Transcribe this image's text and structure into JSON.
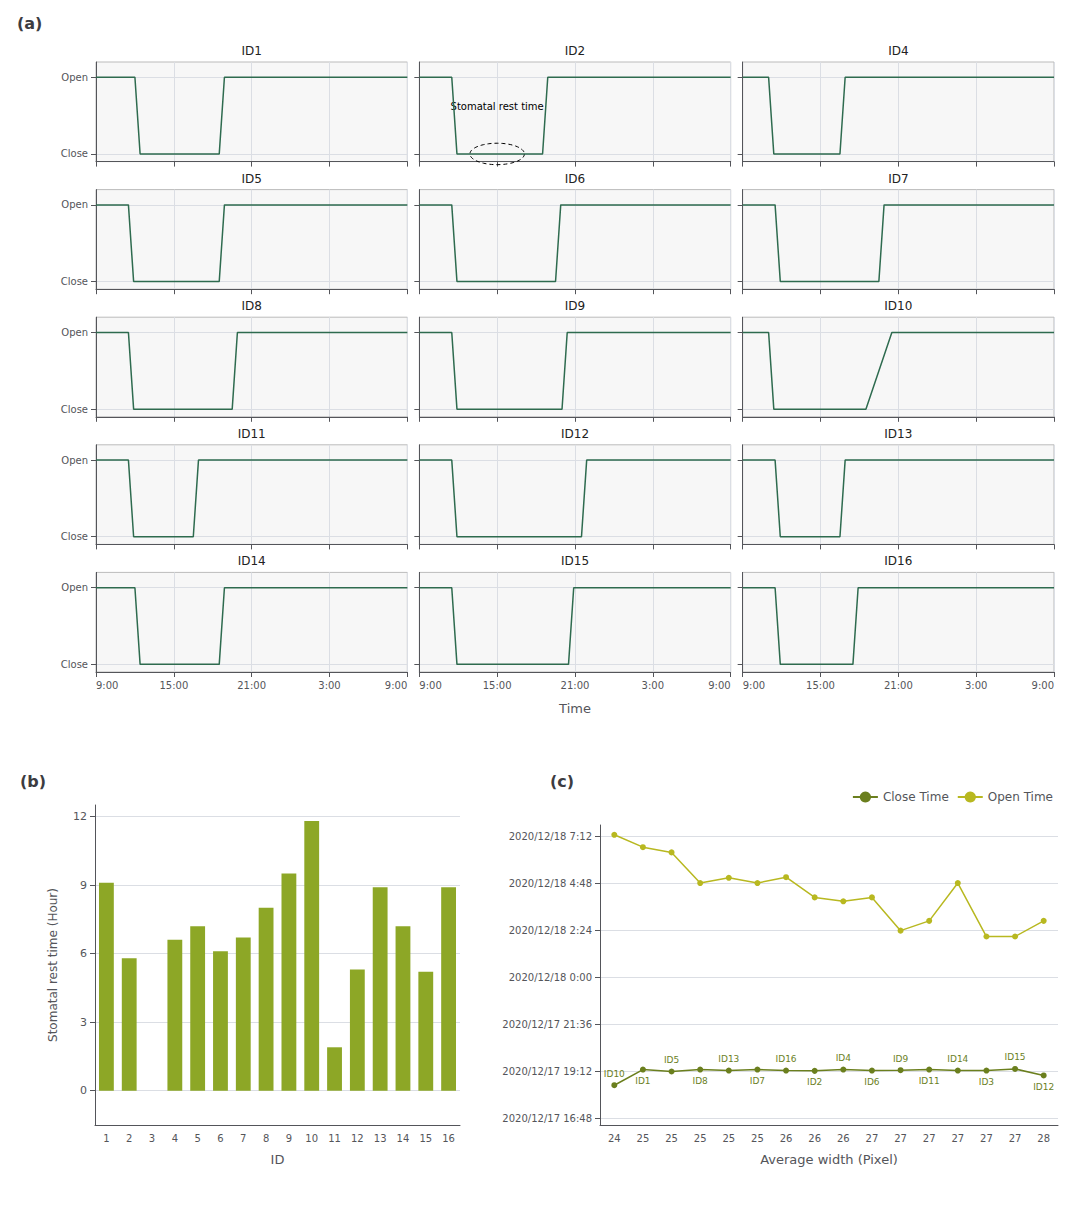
{
  "chart_data": [
    {
      "type": "line",
      "title": "(a)",
      "xlabel": "Time",
      "color": "#2e6b4f",
      "xlim": [
        0,
        24
      ],
      "ylim": [
        -0.1,
        1.2
      ],
      "xticks": [
        {
          "value": 0,
          "label": "9:00"
        },
        {
          "value": 6,
          "label": "15:00"
        },
        {
          "value": 12,
          "label": "21:00"
        },
        {
          "value": 18,
          "label": "3:00"
        },
        {
          "value": 24,
          "label": "9:00"
        }
      ],
      "yticks": [
        {
          "value": 0,
          "label": "Close"
        },
        {
          "value": 1,
          "label": "Open"
        }
      ],
      "grid": true,
      "series": [
        {
          "name": "ID1",
          "x": [
            0,
            3.0,
            3.4,
            9.5,
            9.9,
            24
          ],
          "values": [
            1,
            1,
            0,
            0,
            1,
            1
          ]
        },
        {
          "name": "ID2",
          "x": [
            0,
            2.5,
            2.9,
            9.5,
            9.9,
            24
          ],
          "values": [
            1,
            1,
            0,
            0,
            1,
            1
          ]
        },
        {
          "name": "ID4",
          "x": [
            0,
            2.0,
            2.4,
            7.5,
            7.9,
            24
          ],
          "values": [
            1,
            1,
            0,
            0,
            1,
            1
          ]
        },
        {
          "name": "ID5",
          "x": [
            0,
            2.5,
            2.9,
            9.5,
            9.9,
            24
          ],
          "values": [
            1,
            1,
            0,
            0,
            1,
            1
          ]
        },
        {
          "name": "ID6",
          "x": [
            0,
            2.5,
            2.9,
            10.5,
            10.9,
            24
          ],
          "values": [
            1,
            1,
            0,
            0,
            1,
            1
          ]
        },
        {
          "name": "ID7",
          "x": [
            0,
            2.5,
            2.9,
            10.5,
            10.9,
            24
          ],
          "values": [
            1,
            1,
            0,
            0,
            1,
            1
          ]
        },
        {
          "name": "ID8",
          "x": [
            0,
            2.5,
            2.9,
            10.5,
            10.9,
            24
          ],
          "values": [
            1,
            1,
            0,
            0,
            1,
            1
          ]
        },
        {
          "name": "ID9",
          "x": [
            0,
            2.5,
            2.9,
            11.0,
            11.4,
            24
          ],
          "values": [
            1,
            1,
            0,
            0,
            1,
            1
          ]
        },
        {
          "name": "ID10",
          "x": [
            0,
            2.0,
            2.4,
            9.5,
            11.5,
            24
          ],
          "values": [
            1,
            1,
            0,
            0,
            1,
            1
          ]
        },
        {
          "name": "ID11",
          "x": [
            0,
            2.5,
            2.9,
            7.5,
            7.9,
            24
          ],
          "values": [
            1,
            1,
            0,
            0,
            1,
            1
          ]
        },
        {
          "name": "ID12",
          "x": [
            0,
            2.5,
            2.9,
            12.5,
            12.9,
            24
          ],
          "values": [
            1,
            1,
            0,
            0,
            1,
            1
          ]
        },
        {
          "name": "ID13",
          "x": [
            0,
            2.5,
            2.9,
            7.5,
            7.9,
            24
          ],
          "values": [
            1,
            1,
            0,
            0,
            1,
            1
          ]
        },
        {
          "name": "ID14",
          "x": [
            0,
            3.0,
            3.4,
            9.5,
            9.9,
            24
          ],
          "values": [
            1,
            1,
            0,
            0,
            1,
            1
          ]
        },
        {
          "name": "ID15",
          "x": [
            0,
            2.5,
            2.9,
            11.5,
            11.9,
            24
          ],
          "values": [
            1,
            1,
            0,
            0,
            1,
            1
          ]
        },
        {
          "name": "ID16",
          "x": [
            0,
            2.5,
            2.9,
            8.5,
            8.9,
            24
          ],
          "values": [
            1,
            1,
            0,
            0,
            1,
            1
          ]
        }
      ],
      "annotations": [
        {
          "series": "ID2",
          "text": "Stomatal rest time",
          "x": 6.0,
          "y": 0.55
        }
      ]
    },
    {
      "type": "bar",
      "title": "(b)",
      "xlabel": "ID",
      "ylabel": "Stomatal rest time (Hour)",
      "categories": [
        "1",
        "2",
        "3",
        "4",
        "5",
        "6",
        "7",
        "8",
        "9",
        "10",
        "11",
        "12",
        "13",
        "14",
        "15",
        "16"
      ],
      "values": [
        9.1,
        5.8,
        0,
        6.6,
        7.2,
        6.1,
        6.7,
        8.0,
        9.5,
        11.8,
        1.9,
        5.3,
        8.9,
        7.2,
        5.2,
        8.9
      ],
      "color": "#8da726",
      "ylim": [
        -1.5,
        12.5
      ],
      "yticks": [
        0,
        3,
        6,
        9,
        12
      ],
      "grid": true
    },
    {
      "type": "line",
      "title": "(c)",
      "xlabel": "Average width (Pixel)",
      "categories": [
        "24",
        "25",
        "25",
        "25",
        "25",
        "25",
        "26",
        "26",
        "26",
        "27",
        "27",
        "27",
        "27",
        "27",
        "27",
        "28"
      ],
      "ylim": [
        -20,
        900
      ],
      "yticks": [
        {
          "value": 0,
          "label": "2020/12/17 16:48"
        },
        {
          "value": 144,
          "label": "2020/12/17 19:12"
        },
        {
          "value": 288,
          "label": "2020/12/17 21:36"
        },
        {
          "value": 432,
          "label": "2020/12/18 0:00"
        },
        {
          "value": 576,
          "label": "2020/12/18 2:24"
        },
        {
          "value": 720,
          "label": "2020/12/18 4:48"
        },
        {
          "value": 864,
          "label": "2020/12/18 7:12"
        }
      ],
      "grid": true,
      "legend": "upper right",
      "series": [
        {
          "name": "Close Time",
          "color": "#6b7f1e",
          "marker": "o",
          "values": [
            102,
            150,
            144,
            150,
            147,
            150,
            147,
            146,
            150,
            147,
            148,
            150,
            147,
            147,
            152,
            132
          ],
          "labels": [
            "ID10",
            "ID1",
            "ID5",
            "ID8",
            "ID13",
            "ID7",
            "ID16",
            "ID2",
            "ID4",
            "ID6",
            "ID9",
            "ID11",
            "ID14",
            "ID3",
            "ID15",
            "ID12"
          ]
        },
        {
          "name": "Open Time",
          "color": "#b8b820",
          "marker": "o",
          "values": [
            870,
            832,
            816,
            722,
            738,
            722,
            740,
            678,
            666,
            678,
            576,
            606,
            722,
            558,
            558,
            606
          ]
        }
      ]
    }
  ]
}
